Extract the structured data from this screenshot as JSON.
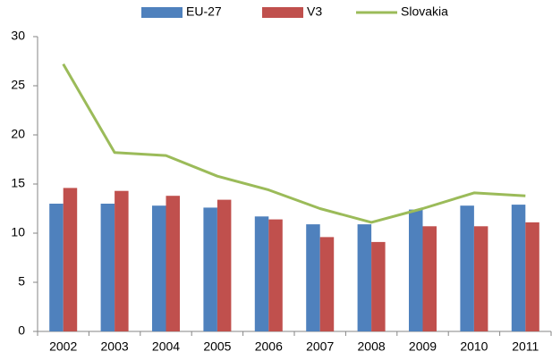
{
  "chart_data": {
    "type": "bar",
    "categories": [
      "2002",
      "2003",
      "2004",
      "2005",
      "2006",
      "2007",
      "2008",
      "2009",
      "2010",
      "2011"
    ],
    "series": [
      {
        "name": "EU-27",
        "type": "bar",
        "color": "#4f81bd",
        "values": [
          13.0,
          13.0,
          12.8,
          12.6,
          11.7,
          10.9,
          10.9,
          12.4,
          12.8,
          12.9
        ]
      },
      {
        "name": "V3",
        "type": "bar",
        "color": "#c0504d",
        "values": [
          14.6,
          14.3,
          13.8,
          13.4,
          11.4,
          9.6,
          9.1,
          10.7,
          10.7,
          11.1
        ]
      },
      {
        "name": "Slovakia",
        "type": "line",
        "color": "#9bbb59",
        "values": [
          27.2,
          18.2,
          17.9,
          15.8,
          14.4,
          12.5,
          11.1,
          12.5,
          14.1,
          13.8
        ]
      }
    ],
    "ylim": [
      0,
      30
    ],
    "yticks": [
      0,
      5,
      10,
      15,
      20,
      25,
      30
    ],
    "grid": false,
    "legend": "top"
  }
}
